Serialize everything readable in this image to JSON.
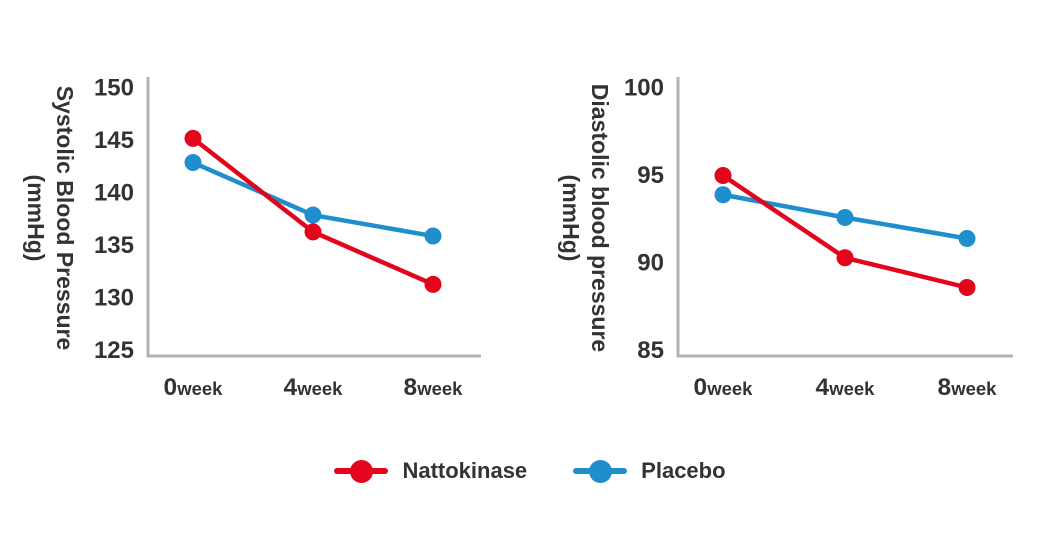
{
  "colors": {
    "nattokinase": "#e2051c",
    "placebo": "#1e8ecd",
    "axis": "#b3b3b3",
    "text": "#333333"
  },
  "legend": {
    "position": "bottom-center",
    "items": [
      {
        "label": "Nattokinase",
        "color_key": "nattokinase",
        "marker": "circle-on-line"
      },
      {
        "label": "Placebo",
        "color_key": "placebo",
        "marker": "circle-on-line"
      }
    ]
  },
  "chart_data": [
    {
      "type": "line",
      "title": "",
      "ylabel": "Systolic Blood Pressure\n(mmHg)",
      "xlabel": "",
      "categories": [
        "0week",
        "4week",
        "8week"
      ],
      "ylim": [
        125,
        150
      ],
      "yticks": [
        150,
        145,
        140,
        135,
        130,
        125
      ],
      "grid": false,
      "series": [
        {
          "name": "Nattokinase",
          "color": "#e2051c",
          "values": [
            145.2,
            136.3,
            131.3
          ]
        },
        {
          "name": "Placebo",
          "color": "#1e8ecd",
          "values": [
            142.9,
            137.9,
            135.9
          ]
        }
      ]
    },
    {
      "type": "line",
      "title": "",
      "ylabel": "Diastolic blood pressure\n(mmHg)",
      "xlabel": "",
      "categories": [
        "0week",
        "4week",
        "8week"
      ],
      "ylim": [
        85,
        100
      ],
      "yticks": [
        100,
        95,
        90,
        85
      ],
      "grid": false,
      "series": [
        {
          "name": "Nattokinase",
          "color": "#e2051c",
          "values": [
            95.0,
            90.3,
            88.6
          ]
        },
        {
          "name": "Placebo",
          "color": "#1e8ecd",
          "values": [
            93.9,
            92.6,
            91.4
          ]
        }
      ]
    }
  ]
}
